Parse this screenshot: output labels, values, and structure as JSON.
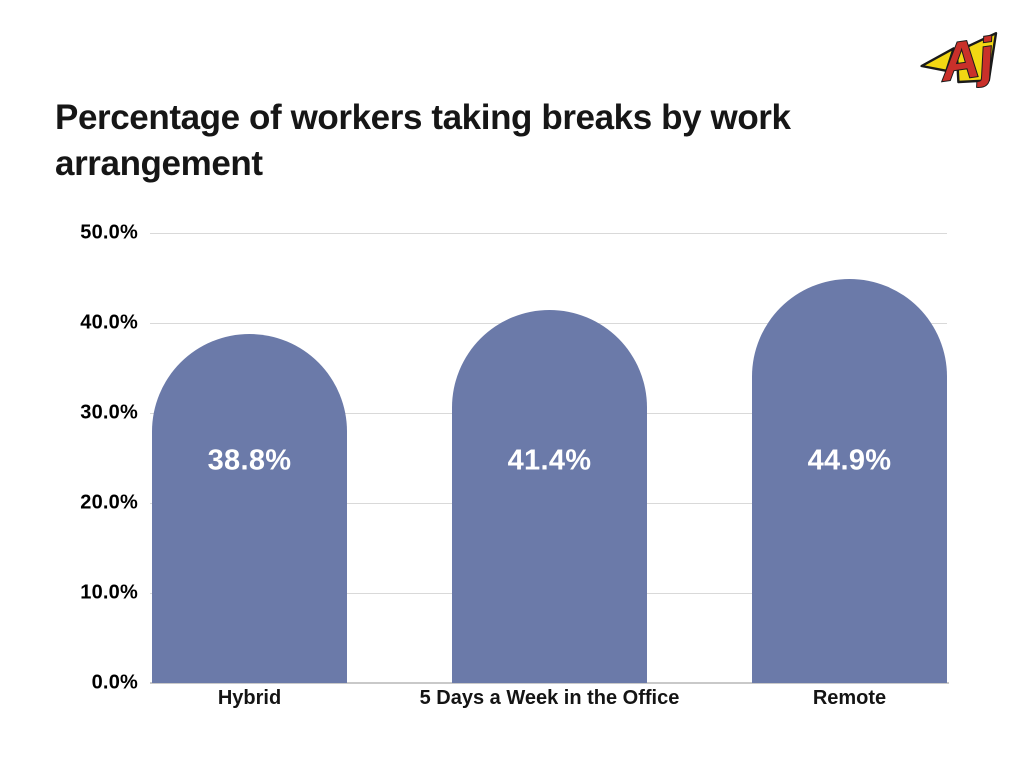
{
  "title": {
    "text": "Percentage of workers taking breaks by work arrangement"
  },
  "logo": {
    "name": "AJ logo",
    "letters": "Aj",
    "colors": {
      "letter_red": "#c9302a",
      "flag_yellow": "#f2d713",
      "outline": "#1a1a1a"
    }
  },
  "chart_data": {
    "type": "bar",
    "title": "Percentage of workers taking breaks by work arrangement",
    "categories": [
      "Hybrid",
      "5 Days a Week in the Office",
      "Remote"
    ],
    "values": [
      38.8,
      41.4,
      44.9
    ],
    "value_labels": [
      "38.8%",
      "41.4%",
      "44.9%"
    ],
    "xlabel": "",
    "ylabel": "",
    "ylim": [
      0,
      50
    ],
    "ytick_step": 10,
    "ytick_labels": [
      "0.0%",
      "10.0%",
      "20.0%",
      "30.0%",
      "40.0%",
      "50.0%"
    ],
    "grid": true,
    "legend": false,
    "bar_color": "#6b7aa9",
    "value_label_color": "#ffffff",
    "gridline_color": "#d9d9d9",
    "axis_line_color": "#c9c9c9"
  }
}
